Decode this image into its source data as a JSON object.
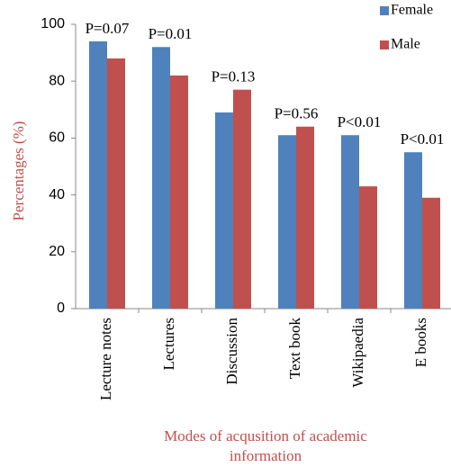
{
  "chart_data": {
    "type": "bar",
    "x_label": "Modes of acqusition of academic information",
    "y_label": "Percentages (%)",
    "categories": [
      "Lecture notes",
      "Lectures",
      "Discussion",
      "Text book",
      "Wikipaedia",
      "E books"
    ],
    "series": [
      {
        "name": "Female",
        "color": "#4f81bd",
        "values": [
          94,
          92,
          69,
          61,
          61,
          55
        ]
      },
      {
        "name": "Male",
        "color": "#c0504d",
        "values": [
          88,
          82,
          77,
          64,
          43,
          39
        ]
      }
    ],
    "annotations": [
      "P=0.07",
      "P=0.01",
      "P=0.13",
      "P=0.56",
      "P<0.01",
      "P<0.01"
    ],
    "ylim": [
      0,
      100
    ],
    "yticks": [
      0,
      20,
      40,
      60,
      80,
      100
    ],
    "legend": "top-right",
    "grid": false
  }
}
